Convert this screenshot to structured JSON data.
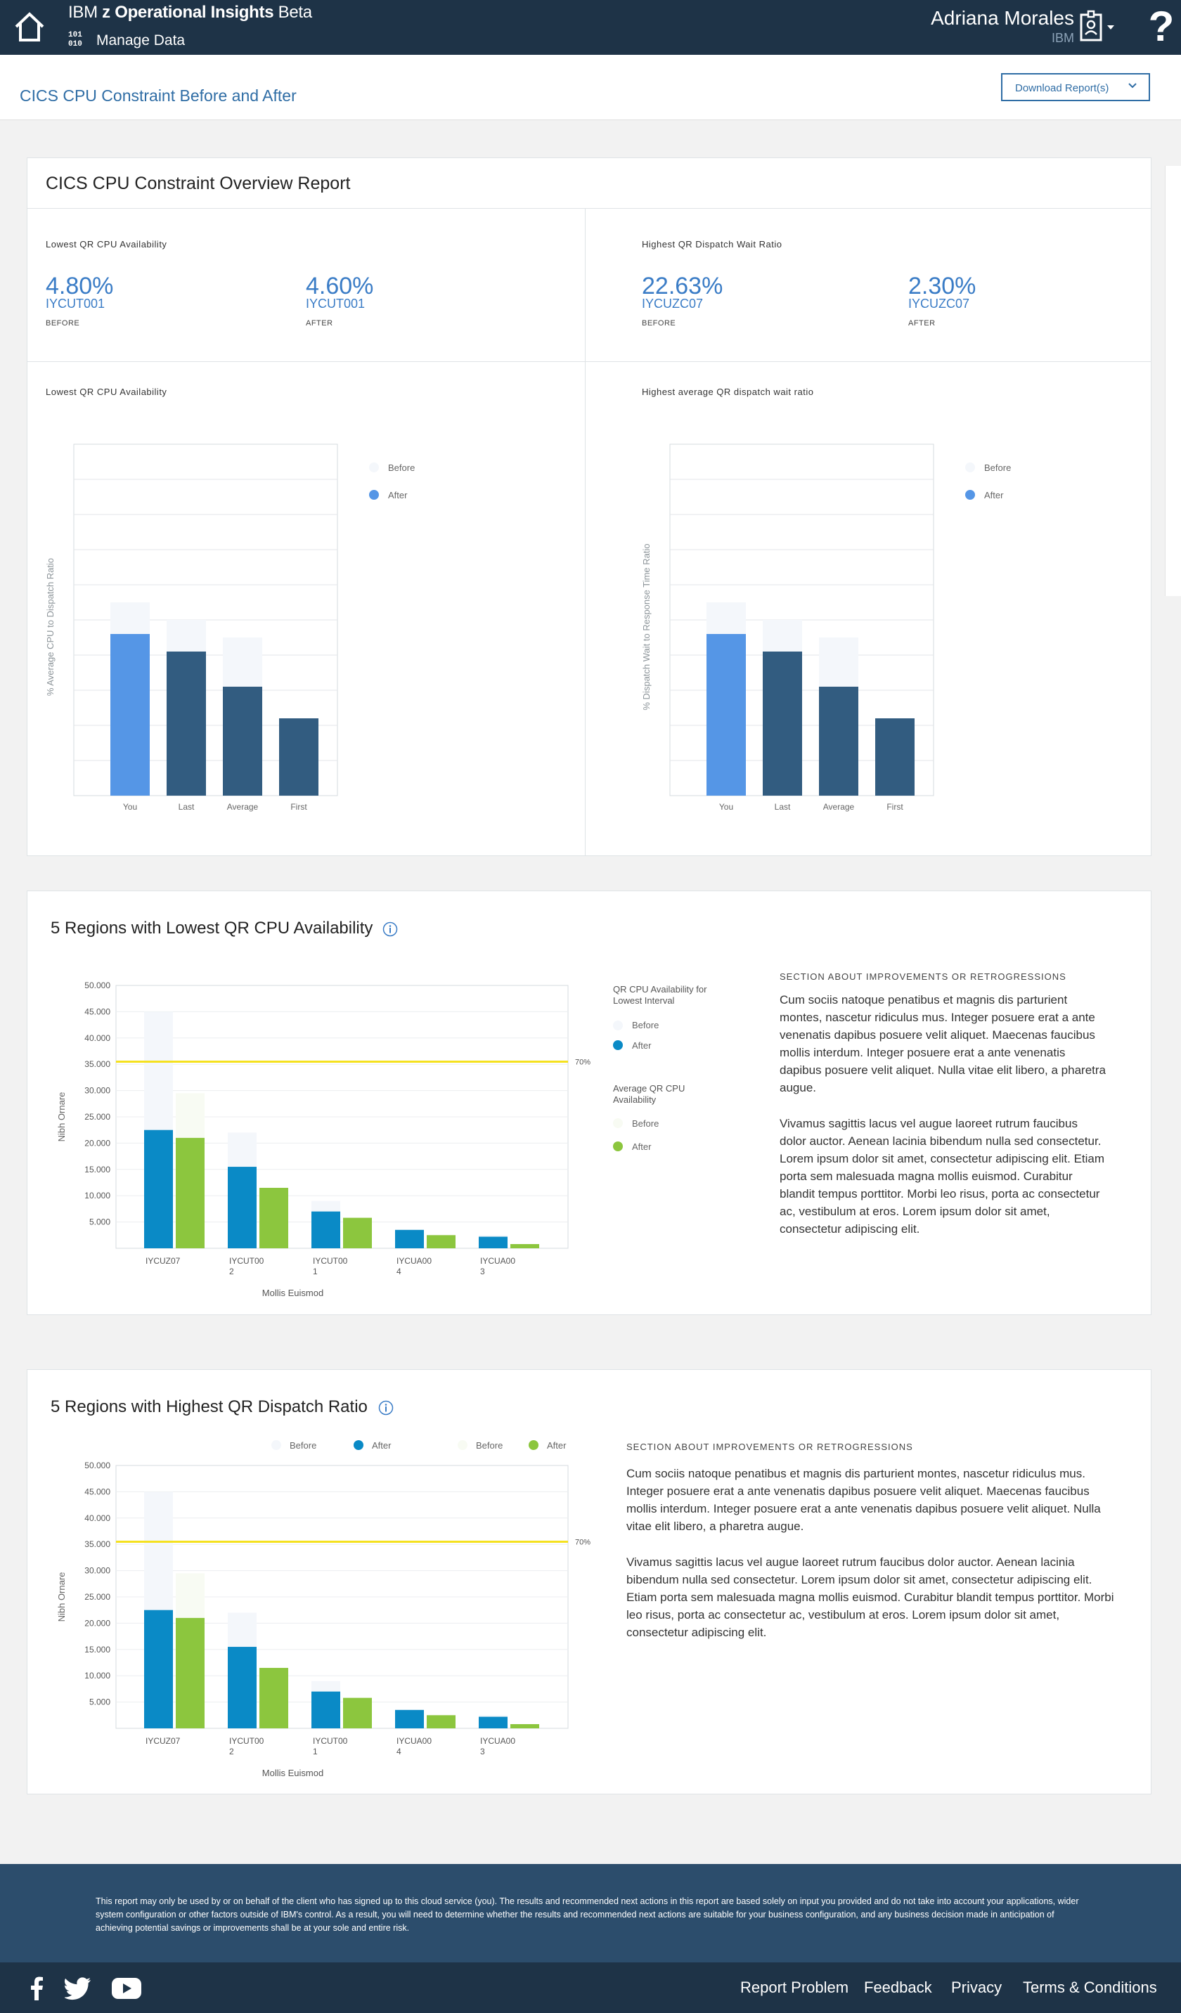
{
  "header": {
    "brand_prefix": "IBM ",
    "brand_bold": "z Operational Insights",
    "brand_suffix": " Beta",
    "binary_top": "101",
    "binary_bottom": "010",
    "section": "Manage Data",
    "user_name": "Adriana Morales",
    "user_org": "IBM",
    "help_glyph": "?"
  },
  "subheader": {
    "title": "CICS CPU Constraint Before and After",
    "download_label": "Download Report(s)"
  },
  "overview": {
    "title": "CICS CPU Constraint Overview Report",
    "left": {
      "label": "Lowest QR CPU Availability",
      "before_value": "4.80%",
      "before_id": "IYCUT001",
      "before_cap": "BEFORE",
      "after_value": "4.60%",
      "after_id": "IYCUT001",
      "after_cap": "AFTER"
    },
    "right": {
      "label": "Highest QR Dispatch Wait Ratio",
      "before_value": "22.63%",
      "before_id": "IYCUZC07",
      "before_cap": "BEFORE",
      "after_value": "2.30%",
      "after_id": "IYCUZC07",
      "after_cap": "AFTER"
    },
    "chart_left_label": "Lowest QR CPU Availability",
    "chart_right_label": "Highest average QR dispatch wait ratio"
  },
  "regions_low": {
    "title": "5 Regions with Lowest QR CPU Availability",
    "section_head": "SECTION ABOUT IMPROVEMENTS OR RETROGRESSIONS",
    "para1": "Cum sociis natoque penatibus et magnis dis parturient montes, nascetur ridiculus mus. Integer posuere erat a ante venenatis dapibus posuere velit aliquet. Maecenas faucibus mollis interdum. Integer posuere erat a ante venenatis dapibus posuere velit aliquet. Nulla vitae elit libero, a pharetra augue.",
    "para2": "Vivamus sagittis lacus vel augue laoreet rutrum faucibus dolor auctor. Aenean lacinia bibendum nulla sed consectetur. Lorem ipsum dolor sit amet, consectetur adipiscing elit. Etiam porta sem malesuada magna mollis euismod. Curabitur blandit tempus porttitor. Morbi leo risus, porta ac consectetur ac, vestibulum at eros. Lorem ipsum dolor sit amet, consectetur adipiscing elit.",
    "legend_group1": "QR CPU Availability for Lowest Interval",
    "legend_group2": "Average QR CPU Availability"
  },
  "regions_high": {
    "title": "5 Regions with Highest QR Dispatch Ratio",
    "section_head": "SECTION ABOUT IMPROVEMENTS OR RETROGRESSIONS",
    "para1": "Cum sociis natoque penatibus et magnis dis parturient montes, nascetur ridiculus mus. Integer posuere erat a ante venenatis dapibus posuere velit aliquet. Maecenas faucibus mollis interdum. Integer posuere erat a ante venenatis dapibus posuere velit aliquet. Nulla vitae elit libero, a pharetra augue.",
    "para2": "Vivamus sagittis lacus vel augue laoreet rutrum faucibus dolor auctor. Aenean lacinia bibendum nulla sed consectetur. Lorem ipsum dolor sit amet, consectetur adipiscing elit. Etiam porta sem malesuada magna mollis euismod. Curabitur blandit tempus porttitor. Morbi leo risus, porta ac consectetur ac, vestibulum at eros. Lorem ipsum dolor sit amet, consectetur adipiscing elit."
  },
  "footer": {
    "disclaimer": "This report may only be used by or on behalf of the client who has signed up to this cloud service (you). The results and recommended next actions in this report are based solely on input you provided and do not take into account your applications, wider system configuration or other factors outside of IBM's control. As a result, you will need to determine whether the results and recommended next actions are suitable for your business configuration, and any business decision made in anticipation of achieving potential savings or improvements shall be at your sole and entire risk.",
    "links": [
      "Report Problem",
      "Feedback",
      "Privacy",
      "Terms & Conditions"
    ],
    "social": [
      "facebook-icon",
      "twitter-icon",
      "youtube-icon"
    ]
  },
  "colors": {
    "navy": "#1e3347",
    "accent_blue": "#3a7cc6",
    "bar_you": "#5596e6",
    "bar_dark": "#325c80",
    "before_ghost": "#f4f7fb",
    "after_blue": "#0a8ac6",
    "after_green": "#8cc63e",
    "threshold": "#f5e11f"
  },
  "chart_data": [
    {
      "type": "bar",
      "ylabel": "% Average CPU to Dispatch Ratio",
      "categories": [
        "You",
        "Last",
        "Average",
        "First"
      ],
      "series": [
        {
          "name": "Before",
          "values": [
            55,
            50,
            45,
            22
          ]
        },
        {
          "name": "After",
          "values": [
            46,
            41,
            31,
            22
          ]
        }
      ],
      "ylim": [
        0,
        100
      ],
      "grid": true,
      "legend": "right"
    },
    {
      "type": "bar",
      "ylabel": "% Dispatch Wait to Response Time Ratio",
      "categories": [
        "You",
        "Last",
        "Average",
        "First"
      ],
      "series": [
        {
          "name": "Before",
          "values": [
            55,
            50,
            45,
            22
          ]
        },
        {
          "name": "After",
          "values": [
            46,
            41,
            31,
            22
          ]
        }
      ],
      "ylim": [
        0,
        100
      ],
      "grid": true,
      "legend": "right"
    },
    {
      "type": "bar",
      "ylabel": "Nibh Ornare",
      "xlabel": "Mollis Euismod",
      "categories": [
        "IYCUZ07",
        "IYCUT002",
        "IYCUT001",
        "IYCUA004",
        "IYCUA003"
      ],
      "tick_labels": [
        [
          "IYCUZ07"
        ],
        [
          "IYCUT00",
          "2"
        ],
        [
          "IYCUT00",
          "1"
        ],
        [
          "IYCUA00",
          "4"
        ],
        [
          "IYCUA00",
          "3"
        ]
      ],
      "yticks": [
        "50.000",
        "45.000",
        "40.000",
        "35.000",
        "30.000",
        "25.000",
        "20.000",
        "15.000",
        "10.000",
        "5.000"
      ],
      "ylim": [
        0,
        50000
      ],
      "threshold": {
        "value": 35500,
        "label": "70%"
      },
      "series": [
        {
          "name": "Before",
          "values": [
            45000,
            22000,
            9000,
            3500,
            2500
          ]
        },
        {
          "name": "After",
          "values": [
            22500,
            15500,
            7000,
            3500,
            2200
          ]
        },
        {
          "name": "Before",
          "values": [
            29500,
            11500,
            5500,
            2500,
            800
          ]
        },
        {
          "name": "After",
          "values": [
            21000,
            11500,
            5800,
            2500,
            800
          ]
        }
      ],
      "legend": "right"
    },
    {
      "type": "bar",
      "ylabel": "Nibh Ornare",
      "xlabel": "Mollis Euismod",
      "categories": [
        "IYCUZ07",
        "IYCUT002",
        "IYCUT001",
        "IYCUA004",
        "IYCUA003"
      ],
      "tick_labels": [
        [
          "IYCUZ07"
        ],
        [
          "IYCUT00",
          "2"
        ],
        [
          "IYCUT00",
          "1"
        ],
        [
          "IYCUA00",
          "4"
        ],
        [
          "IYCUA00",
          "3"
        ]
      ],
      "yticks": [
        "50.000",
        "45.000",
        "40.000",
        "35.000",
        "30.000",
        "25.000",
        "20.000",
        "15.000",
        "10.000",
        "5.000"
      ],
      "ylim": [
        0,
        50000
      ],
      "threshold": {
        "value": 35500,
        "label": "70%"
      },
      "series": [
        {
          "name": "Before",
          "values": [
            45000,
            22000,
            9000,
            3500,
            2500
          ]
        },
        {
          "name": "After",
          "values": [
            22500,
            15500,
            7000,
            3500,
            2200
          ]
        },
        {
          "name": "Before",
          "values": [
            29500,
            11500,
            5500,
            2500,
            800
          ]
        },
        {
          "name": "After",
          "values": [
            21000,
            11500,
            5800,
            2500,
            800
          ]
        }
      ],
      "legend": "top"
    }
  ]
}
